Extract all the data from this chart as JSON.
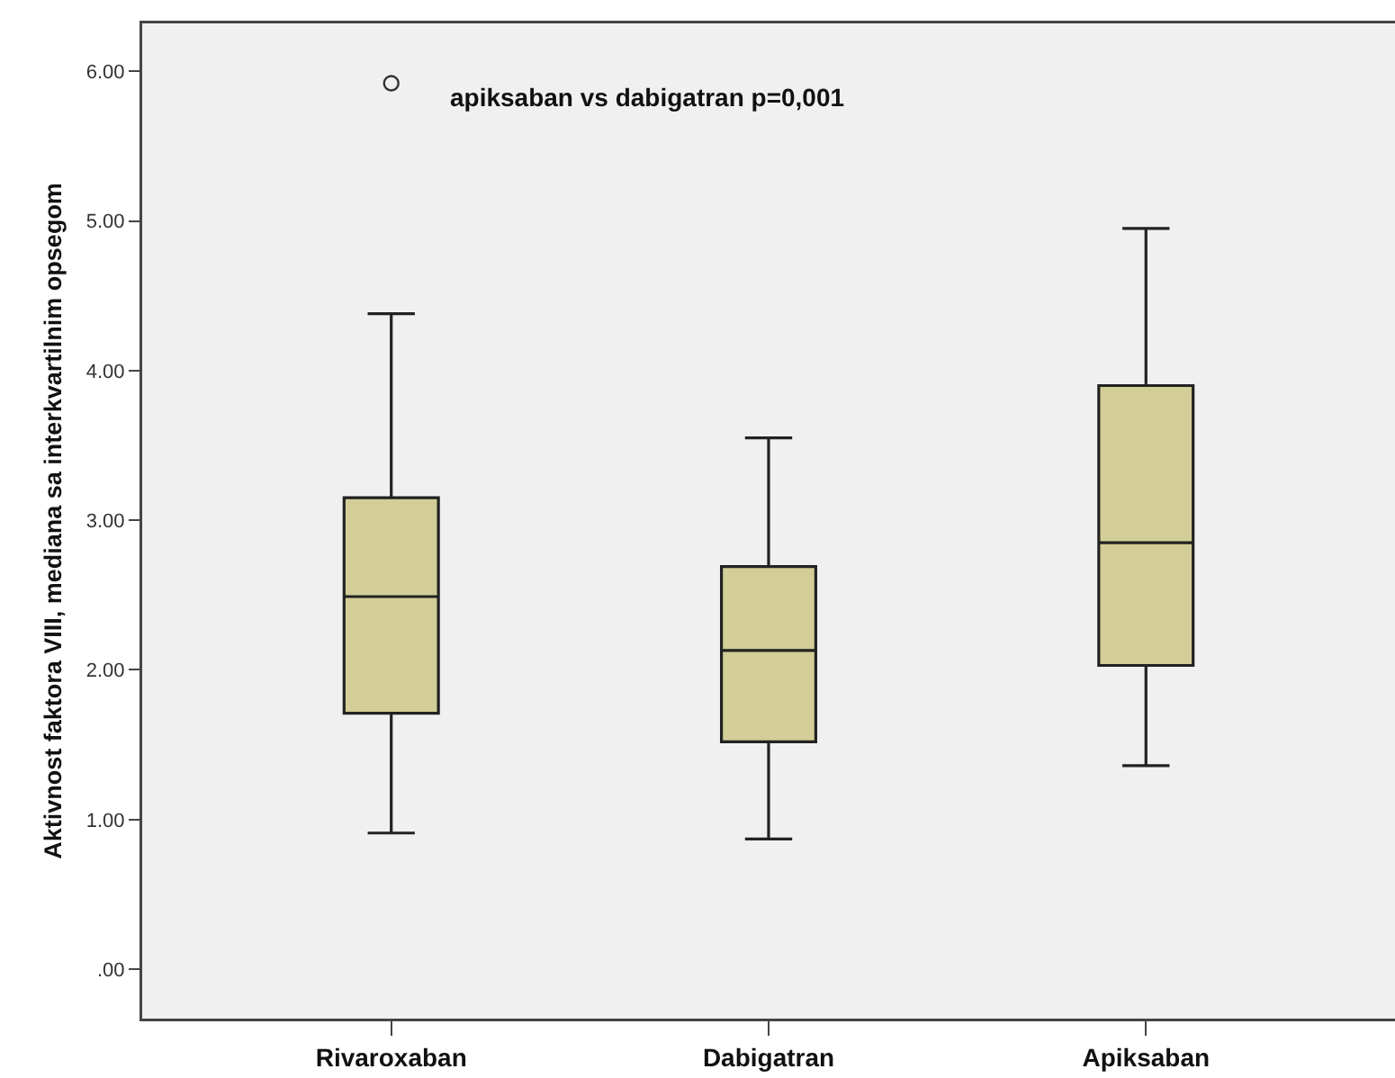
{
  "chart_data": {
    "type": "box",
    "ylabel": "Aktivnost faktora VIII, mediana sa interkvartilnim opsegom",
    "annotations": [
      "apiksaban vs dabigatran p=0,001"
    ],
    "categories": [
      "Rivaroxaban",
      "Dabigatran",
      "Apiksaban"
    ],
    "boxes": [
      {
        "low": 0.91,
        "q1": 1.71,
        "median": 2.49,
        "q3": 3.15,
        "high": 4.38,
        "outliers": [
          5.92
        ]
      },
      {
        "low": 0.87,
        "q1": 1.52,
        "median": 2.13,
        "q3": 2.69,
        "high": 3.55
      },
      {
        "low": 1.36,
        "q1": 2.03,
        "median": 2.85,
        "q3": 3.9,
        "high": 4.95
      }
    ],
    "color": "#d3ce97",
    "ylim": [
      -0.33,
      6.32
    ],
    "yticks": [
      {
        "value": 0,
        "label": ".00"
      },
      {
        "value": 1,
        "label": "1.00"
      },
      {
        "value": 2,
        "label": "2.00"
      },
      {
        "value": 3,
        "label": "3.00"
      },
      {
        "value": 4,
        "label": "4.00"
      },
      {
        "value": 5,
        "label": "5.00"
      },
      {
        "value": 6,
        "label": "6.00"
      }
    ]
  }
}
